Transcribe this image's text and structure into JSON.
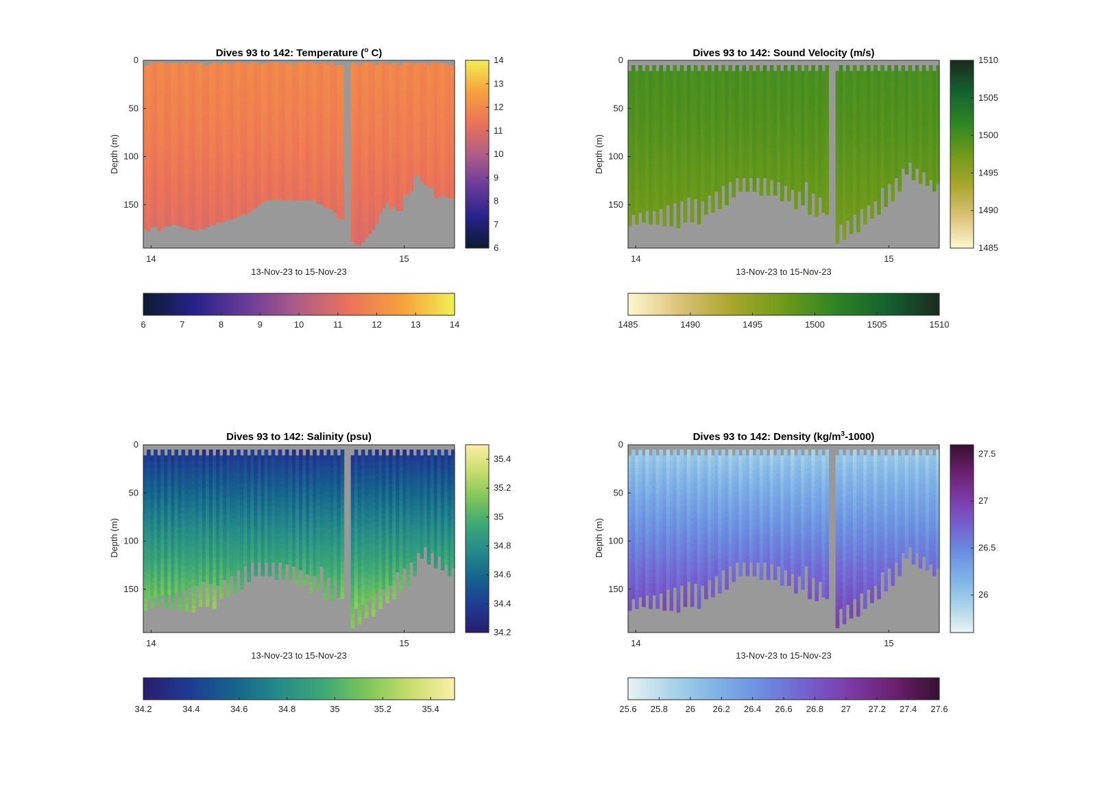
{
  "chart_data": [
    {
      "type": "heatmap",
      "title": "Dives 93 to 142: Temperature (",
      "title_sup": "o",
      "title_end": " C)",
      "xlabel": "13-Nov-23 to 15-Nov-23",
      "ylabel": "Depth (m)",
      "x_ticks": [
        "14",
        "15"
      ],
      "y_ticks": [
        "0",
        "50",
        "100",
        "150"
      ],
      "ylim": [
        0,
        195
      ],
      "clim": [
        6,
        14
      ],
      "colormap": [
        "#0b1b2f",
        "#28228a",
        "#6a3c99",
        "#b05d87",
        "#ec7358",
        "#f7a13c",
        "#f1ef54"
      ],
      "right_colorbar_ticks": [
        "6",
        "7",
        "8",
        "9",
        "10",
        "11",
        "12",
        "13",
        "14"
      ],
      "bottom_colorbar_ticks": [
        "6",
        "7",
        "8",
        "9",
        "10",
        "11",
        "12",
        "13",
        "14"
      ],
      "no_data_color": "#999999",
      "profile_min_depth": [
        5,
        5,
        2,
        2,
        2,
        2,
        4,
        3,
        3,
        3,
        4,
        2,
        4,
        2,
        2,
        4,
        3,
        5,
        5,
        4,
        2,
        4,
        4,
        2,
        3,
        4,
        2,
        2,
        2,
        3,
        4,
        2,
        2,
        4,
        4,
        3,
        2,
        2,
        2,
        3,
        2,
        4,
        2,
        5,
        2,
        2,
        2,
        2,
        2,
        4,
        4,
        2,
        3,
        5,
        2,
        5,
        5,
        5,
        2,
        2,
        3,
        3,
        5,
        3,
        2,
        3,
        3,
        5,
        2,
        3,
        4,
        4,
        3,
        4,
        5,
        2,
        3,
        3,
        4,
        3,
        3,
        3,
        5,
        2,
        2,
        3,
        3,
        4,
        5,
        5
      ],
      "profile_max_depth": [
        175,
        177,
        173,
        172,
        177,
        174,
        172,
        172,
        170,
        171,
        172,
        173,
        174,
        175,
        176,
        177,
        174,
        175,
        173,
        170,
        171,
        168,
        168,
        167,
        165,
        165,
        164,
        162,
        160,
        160,
        158,
        155,
        153,
        150,
        147,
        145,
        145,
        144,
        144,
        144,
        145,
        145,
        144,
        145,
        145,
        145,
        145,
        145,
        145,
        145,
        149,
        149,
        153,
        153,
        155,
        158,
        164,
        165,
        0,
        0,
        188,
        192,
        192,
        189,
        184,
        180,
        176,
        169,
        159,
        153,
        147,
        154,
        152,
        156,
        156,
        140,
        140,
        135,
        120,
        119,
        126,
        129,
        132,
        132,
        143,
        142,
        140,
        142,
        143,
        143
      ]
    },
    {
      "type": "heatmap",
      "title": "Dives 93 to 142: Sound Velocity (m/s)",
      "xlabel": "13-Nov-23 to 15-Nov-23",
      "ylabel": "Depth (m)",
      "x_ticks": [
        "14",
        "15"
      ],
      "y_ticks": [
        "0",
        "50",
        "100",
        "150"
      ],
      "ylim": [
        0,
        195
      ],
      "clim": [
        1485,
        1510
      ],
      "colormap": [
        "#fdf8d0",
        "#dcc278",
        "#a8a62c",
        "#6f9a1a",
        "#2c8524",
        "#146130",
        "#1a2a1f"
      ],
      "right_colorbar_ticks": [
        "1485",
        "1490",
        "1495",
        "1500",
        "1505",
        "1510"
      ],
      "bottom_colorbar_ticks": [
        "1485",
        "1490",
        "1495",
        "1500",
        "1505",
        "1510"
      ],
      "no_data_color": "#999999",
      "profile_min_depth": [
        11,
        5,
        11,
        5,
        11,
        5,
        11,
        5,
        11,
        5,
        11,
        5,
        11,
        5,
        11,
        5,
        11,
        5,
        11,
        5,
        11,
        5,
        11,
        5,
        11,
        5,
        11,
        5,
        11,
        5,
        11,
        5,
        11,
        5,
        11,
        5,
        11,
        5,
        11,
        5,
        11,
        5,
        11,
        5,
        11,
        5,
        11,
        5,
        11,
        5,
        11,
        5,
        11,
        5,
        11,
        5,
        11,
        5,
        0,
        0,
        11,
        5,
        11,
        5,
        11,
        5,
        11,
        5,
        11,
        5,
        11,
        5,
        11,
        5,
        11,
        5,
        11,
        5,
        11,
        5,
        11,
        5,
        11,
        5,
        11,
        5,
        11,
        5,
        11,
        5
      ],
      "profile_max_depth": [
        172,
        160,
        170,
        158,
        168,
        156,
        170,
        156,
        170,
        154,
        172,
        150,
        172,
        148,
        174,
        146,
        168,
        142,
        168,
        144,
        170,
        146,
        160,
        140,
        158,
        136,
        154,
        130,
        150,
        126,
        142,
        122,
        136,
        122,
        136,
        122,
        136,
        122,
        140,
        122,
        140,
        124,
        140,
        126,
        146,
        130,
        146,
        134,
        154,
        136,
        150,
        126,
        160,
        138,
        162,
        142,
        158,
        160,
        0,
        0,
        190,
        170,
        186,
        166,
        180,
        160,
        178,
        154,
        170,
        150,
        164,
        146,
        160,
        132,
        152,
        128,
        146,
        122,
        136,
        112,
        118,
        106,
        124,
        112,
        128,
        116,
        130,
        124,
        136,
        128
      ],
      "axis_tick_labels_note": ""
    },
    {
      "type": "heatmap",
      "title": "Dives 93 to 142: Salinity (psu)",
      "xlabel": "13-Nov-23 to 15-Nov-23",
      "ylabel": "Depth (m)",
      "x_ticks": [
        "14",
        "15"
      ],
      "y_ticks": [
        "0",
        "50",
        "100",
        "150"
      ],
      "ylim": [
        0,
        195
      ],
      "clim": [
        34.2,
        35.5
      ],
      "colormap": [
        "#2a1d6e",
        "#1f3a93",
        "#15628d",
        "#24898a",
        "#3ba776",
        "#7cc55a",
        "#c8dd6c",
        "#fbf0a8"
      ],
      "right_colorbar_ticks": [
        "34.2",
        "34.4",
        "34.6",
        "34.8",
        "35",
        "35.2",
        "35.4"
      ],
      "bottom_colorbar_ticks": [
        "34.2",
        "34.4",
        "34.6",
        "34.8",
        "35",
        "35.2",
        "35.4"
      ],
      "no_data_color": "#999999",
      "profile_min_depth": [
        11,
        5,
        11,
        5,
        11,
        5,
        11,
        5,
        11,
        5,
        11,
        5,
        11,
        5,
        11,
        5,
        11,
        5,
        11,
        5,
        11,
        5,
        11,
        5,
        11,
        5,
        11,
        5,
        11,
        5,
        11,
        5,
        11,
        5,
        11,
        5,
        11,
        5,
        11,
        5,
        11,
        5,
        11,
        5,
        11,
        5,
        11,
        5,
        11,
        5,
        11,
        5,
        11,
        5,
        11,
        5,
        11,
        5,
        0,
        0,
        11,
        5,
        11,
        5,
        11,
        5,
        11,
        5,
        11,
        5,
        11,
        5,
        11,
        5,
        11,
        5,
        11,
        5,
        11,
        5,
        11,
        5,
        11,
        5,
        11,
        5,
        11,
        5,
        11,
        5
      ],
      "profile_max_depth": [
        172,
        160,
        170,
        158,
        168,
        156,
        170,
        156,
        170,
        154,
        172,
        150,
        172,
        148,
        174,
        146,
        168,
        142,
        168,
        144,
        170,
        146,
        160,
        140,
        158,
        136,
        154,
        130,
        150,
        126,
        142,
        122,
        136,
        122,
        136,
        122,
        136,
        122,
        140,
        122,
        140,
        124,
        140,
        126,
        146,
        130,
        146,
        134,
        154,
        136,
        150,
        126,
        160,
        138,
        162,
        142,
        158,
        160,
        0,
        0,
        190,
        170,
        186,
        166,
        180,
        160,
        178,
        154,
        170,
        150,
        164,
        146,
        160,
        132,
        152,
        128,
        146,
        122,
        136,
        112,
        118,
        106,
        124,
        112,
        128,
        116,
        130,
        124,
        136,
        128
      ]
    },
    {
      "type": "heatmap",
      "title": "Dives 93 to 142: Density (kg/m",
      "title_sup": "3",
      "title_end": "-1000)",
      "xlabel": "13-Nov-23 to 15-Nov-23",
      "ylabel": "Depth (m)",
      "x_ticks": [
        "14",
        "15"
      ],
      "y_ticks": [
        "0",
        "50",
        "100",
        "150"
      ],
      "ylim": [
        0,
        195
      ],
      "clim": [
        25.6,
        27.6
      ],
      "colormap": [
        "#e8f3f4",
        "#a9d4e8",
        "#7fb2e6",
        "#6b8ee0",
        "#7560d0",
        "#7b3aa6",
        "#6b1f6e",
        "#361030"
      ],
      "right_colorbar_ticks": [
        "26",
        "26.5",
        "27",
        "27.5"
      ],
      "bottom_colorbar_ticks": [
        "25.6",
        "25.8",
        "26",
        "26.2",
        "26.4",
        "26.6",
        "26.8",
        "27",
        "27.2",
        "27.4",
        "27.6"
      ],
      "no_data_color": "#999999",
      "profile_min_depth": [
        11,
        5,
        11,
        5,
        11,
        5,
        11,
        5,
        11,
        5,
        11,
        5,
        11,
        5,
        11,
        5,
        11,
        5,
        11,
        5,
        11,
        5,
        11,
        5,
        11,
        5,
        11,
        5,
        11,
        5,
        11,
        5,
        11,
        5,
        11,
        5,
        11,
        5,
        11,
        5,
        11,
        5,
        11,
        5,
        11,
        5,
        11,
        5,
        11,
        5,
        11,
        5,
        11,
        5,
        11,
        5,
        11,
        5,
        0,
        0,
        11,
        5,
        11,
        5,
        11,
        5,
        11,
        5,
        11,
        5,
        11,
        5,
        11,
        5,
        11,
        5,
        11,
        5,
        11,
        5,
        11,
        5,
        11,
        5,
        11,
        5,
        11,
        5,
        11,
        5
      ],
      "profile_max_depth": [
        172,
        160,
        170,
        158,
        168,
        156,
        170,
        156,
        170,
        154,
        172,
        150,
        172,
        148,
        174,
        146,
        168,
        142,
        168,
        144,
        170,
        146,
        160,
        140,
        158,
        136,
        154,
        130,
        150,
        126,
        142,
        122,
        136,
        122,
        136,
        122,
        136,
        122,
        140,
        122,
        140,
        124,
        140,
        126,
        146,
        130,
        146,
        134,
        154,
        136,
        150,
        126,
        160,
        138,
        162,
        142,
        158,
        160,
        0,
        0,
        190,
        170,
        186,
        166,
        180,
        160,
        178,
        154,
        170,
        150,
        164,
        146,
        160,
        132,
        152,
        128,
        146,
        122,
        136,
        112,
        118,
        106,
        124,
        112,
        128,
        116,
        130,
        124,
        136,
        128
      ]
    }
  ]
}
